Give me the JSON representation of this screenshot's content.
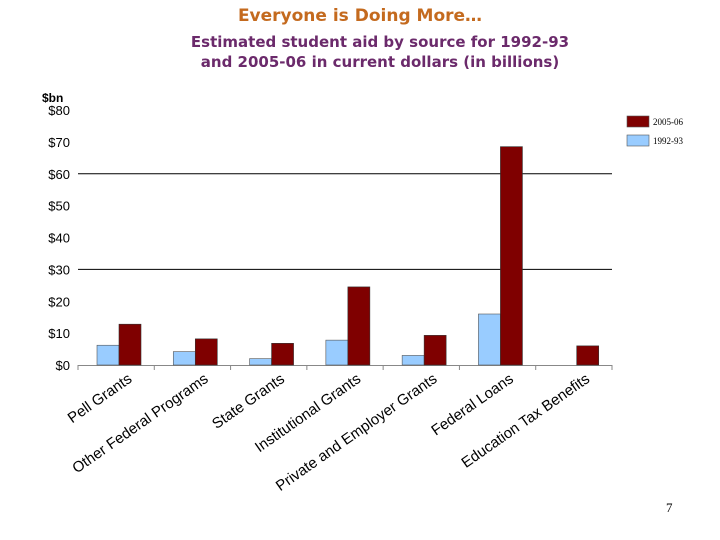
{
  "title": "Everyone is Doing More…",
  "subtitle_line1": "Estimated student aid by source for 1992-93",
  "subtitle_line2": "and 2005-06 in current dollars (in billions)",
  "unit_label": "$bn",
  "page_number": "7",
  "chart_data": {
    "type": "bar",
    "title": "Estimated student aid by source for 1992-93 and 2005-06 in current dollars (in billions)",
    "ylabel": "$bn",
    "xlabel": "",
    "ylim": [
      0,
      80
    ],
    "yticks": [
      0,
      10,
      20,
      30,
      40,
      50,
      60,
      70,
      80
    ],
    "ytick_labels": [
      "$0",
      "$10",
      "$20",
      "$30",
      "$40",
      "$50",
      "$60",
      "$70",
      "$80"
    ],
    "grid": true,
    "legend_position": "top-right",
    "categories": [
      "Pell Grants",
      "Other Federal Programs",
      "State Grants",
      "Institutional Grants",
      "Private and Employer Grants",
      "Federal Loans",
      "Education Tax Benefits"
    ],
    "series": [
      {
        "name": "1992-93",
        "color": "#99ccff",
        "values": [
          6.2,
          4.2,
          2.0,
          7.8,
          3.0,
          16.0,
          0
        ]
      },
      {
        "name": "2005-06",
        "color": "#7f0000",
        "values": [
          12.8,
          8.2,
          6.8,
          24.5,
          9.3,
          68.5,
          6.0
        ]
      }
    ]
  }
}
